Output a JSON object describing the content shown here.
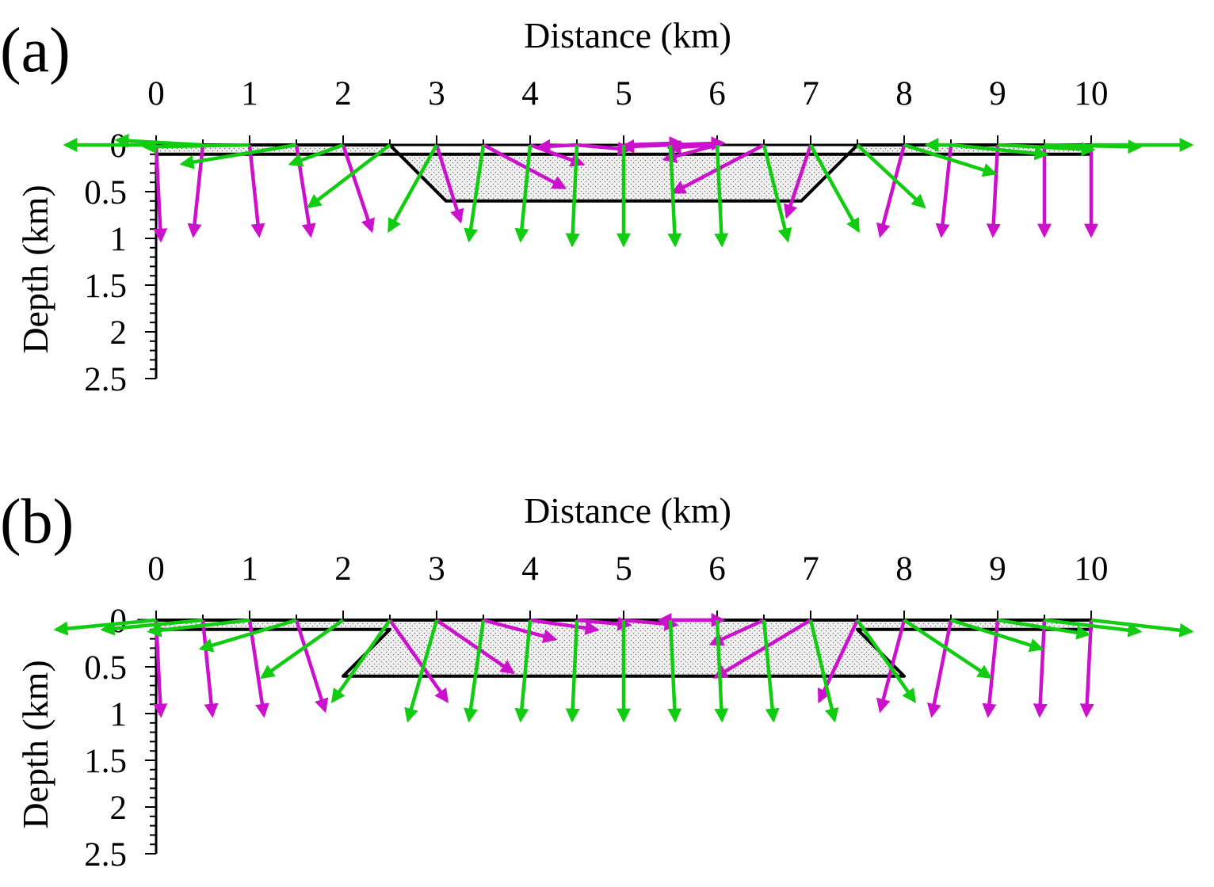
{
  "figure": {
    "colors": {
      "magenta": "#cc11cc",
      "green": "#11cc11",
      "outline": "#000000",
      "fill": "#e4e4e4"
    },
    "panels": [
      {
        "id": "a",
        "label": "(a)",
        "xlabel": "Distance (km)",
        "ylabel": "Depth (km)",
        "x_ticks": [
          "0",
          "1",
          "2",
          "3",
          "4",
          "5",
          "6",
          "7",
          "8",
          "9",
          "10"
        ],
        "y_ticks": [
          "0",
          "0.5",
          "1",
          "1.5",
          "2",
          "2.5"
        ],
        "body_outline": [
          [
            0,
            0
          ],
          [
            2.5,
            0
          ],
          [
            3.1,
            0.6
          ],
          [
            6.9,
            0.6
          ],
          [
            7.5,
            0
          ],
          [
            10,
            0
          ],
          [
            10,
            0.1
          ],
          [
            0,
            0.1
          ]
        ],
        "arrows": [
          {
            "x": 0.5,
            "dx": -0.1,
            "dz": 0.95,
            "color": "magenta"
          },
          {
            "x": 1,
            "dx": 0.1,
            "dz": 0.95,
            "color": "magenta"
          },
          {
            "x": 1.5,
            "dx": 0.15,
            "dz": 0.95,
            "color": "magenta"
          },
          {
            "x": 2,
            "dx": 0.3,
            "dz": 0.9,
            "color": "magenta"
          },
          {
            "x": 3,
            "dx": 0.25,
            "dz": 0.8,
            "color": "magenta"
          },
          {
            "x": 3.5,
            "dx": 0.85,
            "dz": 0.45,
            "color": "magenta"
          },
          {
            "x": 4,
            "dx": 0.55,
            "dz": 0.2,
            "color": "magenta"
          },
          {
            "x": 4.5,
            "dx": 0.55,
            "dz": 0.05,
            "color": "magenta"
          },
          {
            "x": 5,
            "dx": 0.6,
            "dz": -0.02,
            "color": "magenta"
          },
          {
            "x": 5.5,
            "dx": 0.55,
            "dz": -0.02,
            "color": "magenta"
          },
          {
            "x": 6.5,
            "dx": -0.95,
            "dz": 0.5,
            "color": "magenta"
          },
          {
            "x": 7,
            "dx": -0.25,
            "dz": 0.75,
            "color": "magenta"
          },
          {
            "x": 8,
            "dx": -0.25,
            "dz": 0.95,
            "color": "magenta"
          },
          {
            "x": 8.5,
            "dx": -0.1,
            "dz": 0.95,
            "color": "magenta"
          },
          {
            "x": 9,
            "dx": -0.05,
            "dz": 0.95,
            "color": "magenta"
          },
          {
            "x": 9.5,
            "dx": 0,
            "dz": 0.95,
            "color": "magenta"
          },
          {
            "x": 10,
            "dx": 0,
            "dz": 0.95,
            "color": "magenta"
          },
          {
            "x": 4.5,
            "dx": -0.4,
            "dz": 0.02,
            "color": "magenta"
          },
          {
            "x": 5.5,
            "dx": -0.5,
            "dz": 0.02,
            "color": "magenta"
          },
          {
            "x": 6,
            "dx": -0.5,
            "dz": 0.03,
            "color": "magenta"
          },
          {
            "x": 6,
            "dx": -0.55,
            "dz": 0.15,
            "color": "magenta"
          },
          {
            "x": 0,
            "dx": 0.05,
            "dz": 1.0,
            "color": "magenta"
          },
          {
            "x": 0.5,
            "dx": -0.9,
            "dz": -0.05,
            "color": "green"
          },
          {
            "x": 1,
            "dx": -1.1,
            "dz": 0.02,
            "color": "green"
          },
          {
            "x": 1.5,
            "dx": -1.2,
            "dz": 0.2,
            "color": "green"
          },
          {
            "x": 2,
            "dx": -0.55,
            "dz": 0.2,
            "color": "green"
          },
          {
            "x": 2.5,
            "dx": -0.85,
            "dz": 0.65,
            "color": "green"
          },
          {
            "x": 3,
            "dx": -0.5,
            "dz": 0.9,
            "color": "green"
          },
          {
            "x": 3.5,
            "dx": -0.15,
            "dz": 1.0,
            "color": "green"
          },
          {
            "x": 4,
            "dx": -0.1,
            "dz": 1.0,
            "color": "green"
          },
          {
            "x": 4.5,
            "dx": -0.05,
            "dz": 1.05,
            "color": "green"
          },
          {
            "x": 5,
            "dx": 0,
            "dz": 1.05,
            "color": "green"
          },
          {
            "x": 5.5,
            "dx": 0.05,
            "dz": 1.05,
            "color": "green"
          },
          {
            "x": 6,
            "dx": 0.05,
            "dz": 1.05,
            "color": "green"
          },
          {
            "x": 6.5,
            "dx": 0.25,
            "dz": 1.0,
            "color": "green"
          },
          {
            "x": 7,
            "dx": 0.5,
            "dz": 0.9,
            "color": "green"
          },
          {
            "x": 7.5,
            "dx": 0.7,
            "dz": 0.65,
            "color": "green"
          },
          {
            "x": 8,
            "dx": 0.95,
            "dz": 0.3,
            "color": "green"
          },
          {
            "x": 8.5,
            "dx": 1.0,
            "dz": 0.1,
            "color": "green"
          },
          {
            "x": 9,
            "dx": 1.0,
            "dz": 0.05,
            "color": "green"
          },
          {
            "x": 9.5,
            "dx": 1.0,
            "dz": 0.02,
            "color": "green"
          },
          {
            "x": 10,
            "dx": 1.05,
            "dz": 0.0,
            "color": "green"
          },
          {
            "x": 0,
            "dx": -0.95,
            "dz": 0.0,
            "color": "green"
          },
          {
            "x": 8.5,
            "dx": -0.25,
            "dz": 0.0,
            "color": "green"
          }
        ]
      },
      {
        "id": "b",
        "label": "(b)",
        "xlabel": "Distance (km)",
        "ylabel": "Depth (km)",
        "x_ticks": [
          "0",
          "1",
          "2",
          "3",
          "4",
          "5",
          "6",
          "7",
          "8",
          "9",
          "10"
        ],
        "y_ticks": [
          "0",
          "0.5",
          "1",
          "1.5",
          "2",
          "2.5"
        ],
        "body_outline": [
          [
            0,
            0
          ],
          [
            10,
            0
          ],
          [
            10,
            0.1
          ],
          [
            7.5,
            0.1
          ],
          [
            8.0,
            0.6
          ],
          [
            2.0,
            0.6
          ],
          [
            2.5,
            0.1
          ],
          [
            0,
            0.1
          ]
        ],
        "arrows": [
          {
            "x": 0,
            "dx": 0.05,
            "dz": 1.0,
            "color": "magenta"
          },
          {
            "x": 0.5,
            "dx": 0.1,
            "dz": 1.0,
            "color": "magenta"
          },
          {
            "x": 1,
            "dx": 0.15,
            "dz": 1.0,
            "color": "magenta"
          },
          {
            "x": 1.5,
            "dx": 0.3,
            "dz": 0.95,
            "color": "magenta"
          },
          {
            "x": 2.5,
            "dx": 0.6,
            "dz": 0.85,
            "color": "magenta"
          },
          {
            "x": 3,
            "dx": 0.8,
            "dz": 0.55,
            "color": "magenta"
          },
          {
            "x": 3.5,
            "dx": 0.75,
            "dz": 0.2,
            "color": "magenta"
          },
          {
            "x": 4,
            "dx": 0.7,
            "dz": 0.1,
            "color": "magenta"
          },
          {
            "x": 4.5,
            "dx": 0.55,
            "dz": 0.05,
            "color": "magenta"
          },
          {
            "x": 5,
            "dx": 0.55,
            "dz": 0.05,
            "color": "magenta"
          },
          {
            "x": 5.5,
            "dx": 0.55,
            "dz": 0.0,
            "color": "magenta"
          },
          {
            "x": 6,
            "dx": -0.6,
            "dz": 0.0,
            "color": "magenta"
          },
          {
            "x": 6.5,
            "dx": -0.55,
            "dz": 0.25,
            "color": "magenta"
          },
          {
            "x": 7,
            "dx": -1.0,
            "dz": 0.6,
            "color": "magenta"
          },
          {
            "x": 7.5,
            "dx": -0.4,
            "dz": 0.85,
            "color": "magenta"
          },
          {
            "x": 8,
            "dx": -0.25,
            "dz": 0.95,
            "color": "magenta"
          },
          {
            "x": 8.5,
            "dx": -0.2,
            "dz": 1.0,
            "color": "magenta"
          },
          {
            "x": 9,
            "dx": -0.1,
            "dz": 1.0,
            "color": "magenta"
          },
          {
            "x": 9.5,
            "dx": -0.05,
            "dz": 1.0,
            "color": "magenta"
          },
          {
            "x": 10,
            "dx": -0.05,
            "dz": 1.0,
            "color": "magenta"
          },
          {
            "x": 0.5,
            "dx": -1.05,
            "dz": 0.1,
            "color": "green"
          },
          {
            "x": 1,
            "dx": -1.05,
            "dz": 0.12,
            "color": "green"
          },
          {
            "x": 1.5,
            "dx": -1.0,
            "dz": 0.3,
            "color": "green"
          },
          {
            "x": 2,
            "dx": -0.85,
            "dz": 0.6,
            "color": "green"
          },
          {
            "x": 2.5,
            "dx": -0.6,
            "dz": 0.85,
            "color": "green"
          },
          {
            "x": 3,
            "dx": -0.3,
            "dz": 1.05,
            "color": "green"
          },
          {
            "x": 3.5,
            "dx": -0.15,
            "dz": 1.05,
            "color": "green"
          },
          {
            "x": 4,
            "dx": -0.1,
            "dz": 1.05,
            "color": "green"
          },
          {
            "x": 4.5,
            "dx": -0.05,
            "dz": 1.05,
            "color": "green"
          },
          {
            "x": 5,
            "dx": 0,
            "dz": 1.05,
            "color": "green"
          },
          {
            "x": 5.5,
            "dx": 0.05,
            "dz": 1.05,
            "color": "green"
          },
          {
            "x": 6,
            "dx": 0.05,
            "dz": 1.05,
            "color": "green"
          },
          {
            "x": 6.5,
            "dx": 0.1,
            "dz": 1.05,
            "color": "green"
          },
          {
            "x": 7,
            "dx": 0.25,
            "dz": 1.05,
            "color": "green"
          },
          {
            "x": 7.5,
            "dx": 0.6,
            "dz": 0.85,
            "color": "green"
          },
          {
            "x": 8,
            "dx": 0.9,
            "dz": 0.6,
            "color": "green"
          },
          {
            "x": 8.5,
            "dx": 0.95,
            "dz": 0.3,
            "color": "green"
          },
          {
            "x": 9,
            "dx": 0.95,
            "dz": 0.15,
            "color": "green"
          },
          {
            "x": 9.5,
            "dx": 1.0,
            "dz": 0.12,
            "color": "green"
          },
          {
            "x": 10,
            "dx": 1.05,
            "dz": 0.12,
            "color": "green"
          },
          {
            "x": 0,
            "dx": -1.05,
            "dz": 0.1,
            "color": "green"
          }
        ]
      }
    ]
  }
}
